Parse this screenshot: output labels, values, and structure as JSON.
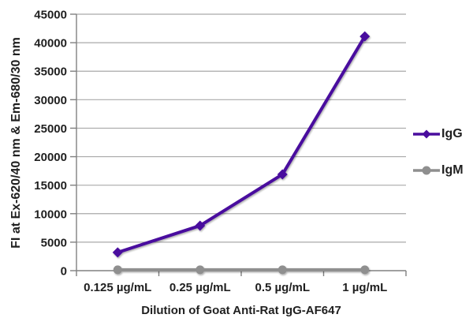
{
  "chart_data": {
    "type": "line",
    "title": "",
    "xlabel": "Dilution of Goat Anti-Rat IgG-AF647",
    "ylabel": "FI at Ex-620/40 nm & Em-680/30 nm",
    "categories": [
      "0.125 µg/mL",
      "0.25 µg/mL",
      "0.5 µg/mL",
      "1 µg/mL"
    ],
    "series": [
      {
        "name": "IgG",
        "values": [
          3200,
          7900,
          16900,
          41100
        ],
        "color": "#4a0d9e",
        "marker": "diamond"
      },
      {
        "name": "IgM",
        "values": [
          150,
          150,
          150,
          150
        ],
        "color": "#8f8f8f",
        "marker": "circle"
      }
    ],
    "ylim": [
      0,
      45000
    ],
    "ytick_step": 5000,
    "grid": true,
    "legend_position": "right",
    "colors": {
      "grid": "#a9a9a9",
      "axis": "#808080",
      "text": "#1f1f1f",
      "background": "#ffffff"
    }
  }
}
